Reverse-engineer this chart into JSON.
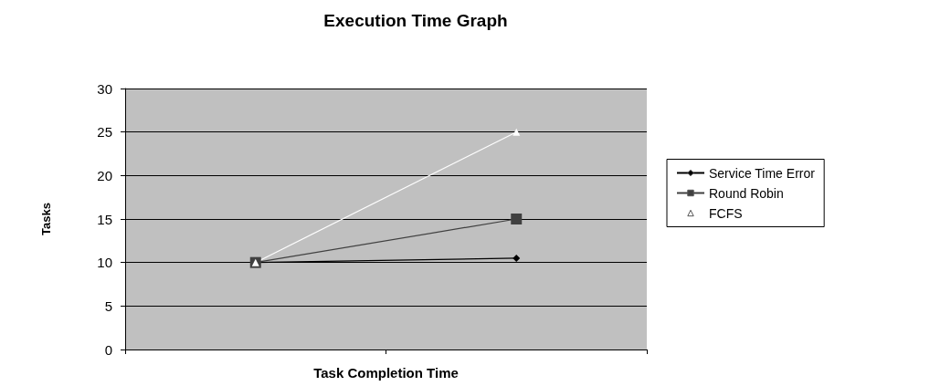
{
  "chart_data": {
    "type": "line",
    "title": "Execution Time Graph",
    "xlabel": "Task Completion Time",
    "ylabel": "Tasks",
    "categories": [
      null,
      null
    ],
    "series": [
      {
        "name": "Service Time Error",
        "color": "#000000",
        "marker": "diamond",
        "values": [
          10,
          10.5
        ]
      },
      {
        "name": "Round Robin",
        "color": "#404040",
        "marker": "square",
        "values": [
          10,
          15
        ]
      },
      {
        "name": "FCFS",
        "color": "#ffffff",
        "marker": "triangle",
        "values": [
          10,
          25
        ]
      }
    ],
    "ylim": [
      0,
      30
    ],
    "yticks": [
      0,
      5,
      10,
      15,
      20,
      25,
      30
    ],
    "grid": "y",
    "legend": "right"
  }
}
